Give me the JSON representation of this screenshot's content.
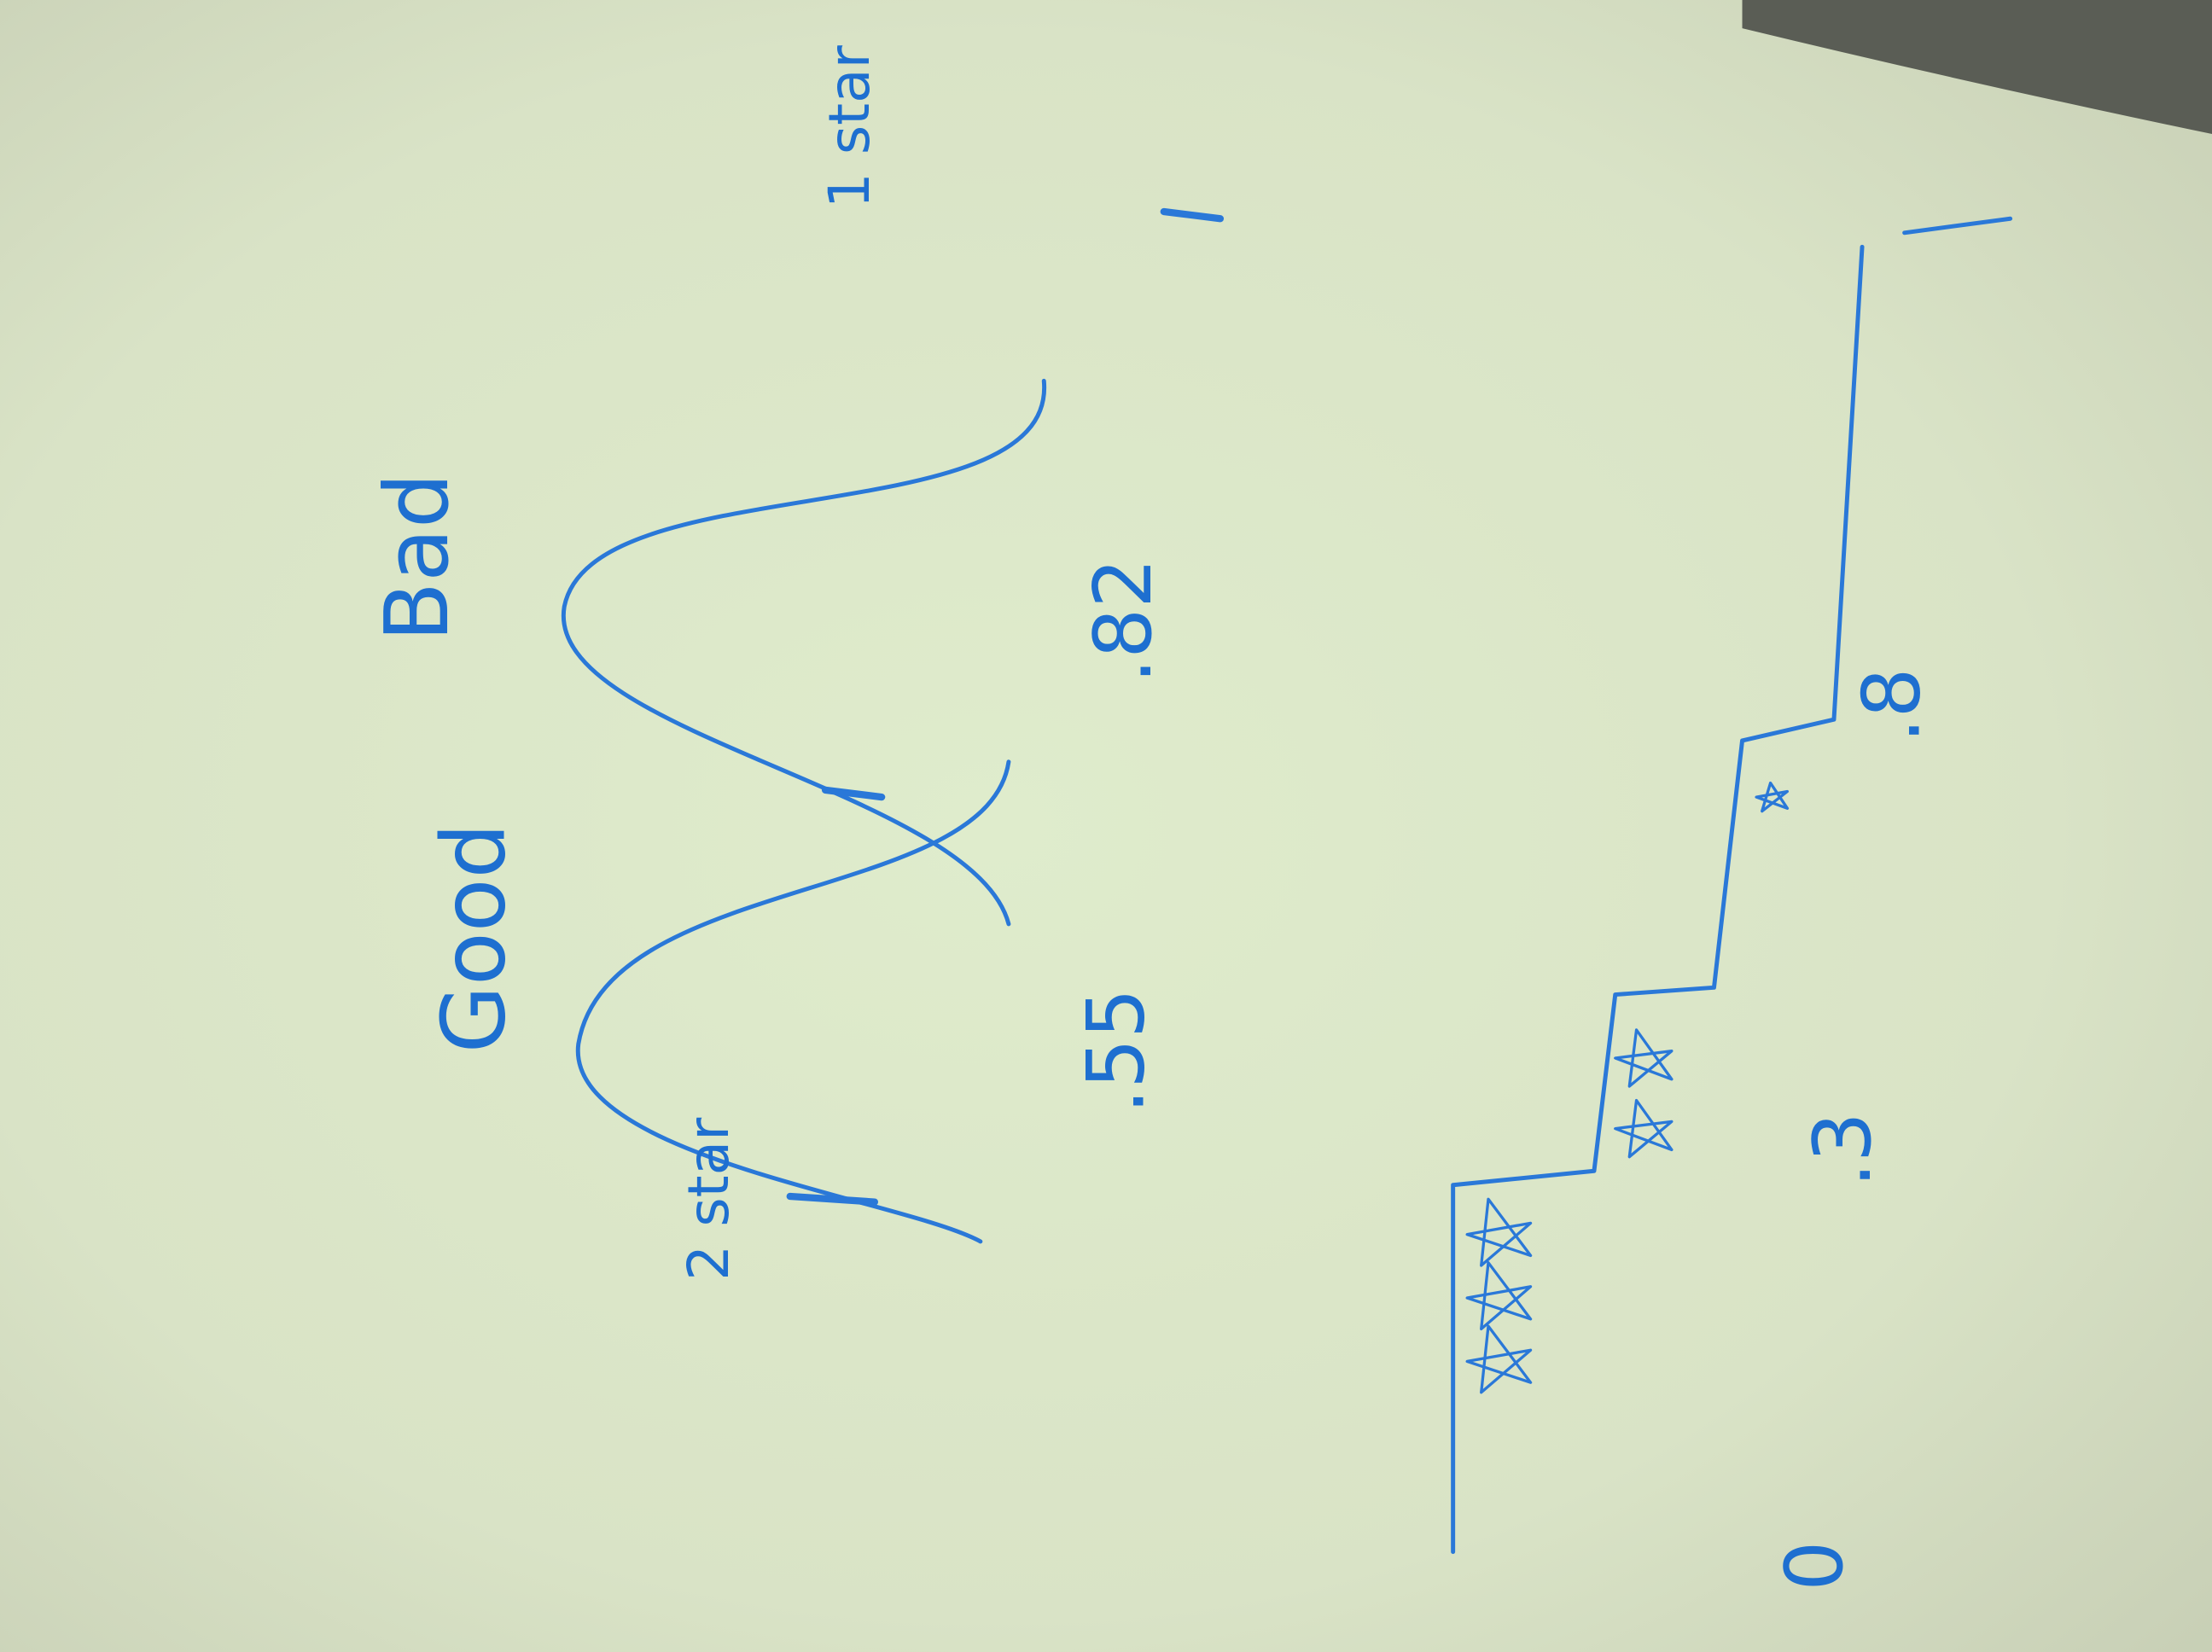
{
  "whiteboard": {
    "labels": {
      "good": "Good",
      "bad": "Bad",
      "two_star": "2 star",
      "one_star": "1 star",
      "left_value": ".55",
      "right_value": ".82",
      "step_top": ".8",
      "step_middle": ".3",
      "step_bottom": "0"
    }
  }
}
